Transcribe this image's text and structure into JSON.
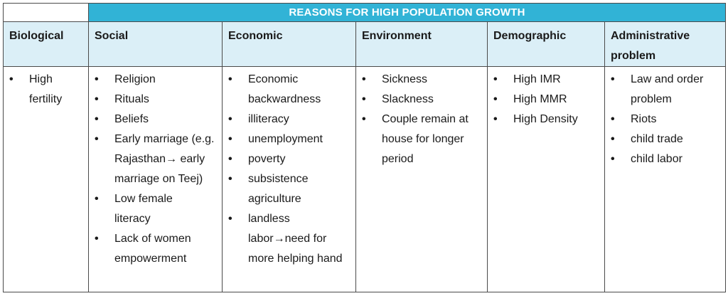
{
  "title": "REASONS FOR HIGH POPULATION GROWTH",
  "columns": [
    {
      "header": "Biological",
      "items": [
        "High fertility"
      ]
    },
    {
      "header": "Social",
      "items": [
        "Religion",
        "Rituals",
        "Beliefs",
        "Early marriage (e.g. Rajasthan→ early marriage on Teej)",
        "Low female literacy",
        "Lack of women empowerment"
      ]
    },
    {
      "header": "Economic",
      "items": [
        "Economic backwardness",
        "illiteracy",
        "unemployment",
        "poverty",
        "subsistence agriculture",
        "landless labor→need for more helping hand"
      ]
    },
    {
      "header": "Environment",
      "items": [
        "Sickness",
        "Slackness",
        "Couple remain at house for longer period"
      ]
    },
    {
      "header": "Demographic",
      "items": [
        "High IMR",
        "High MMR",
        "High Density"
      ]
    },
    {
      "header": "Administrative problem",
      "items": [
        "Law and order problem",
        "Riots",
        "child trade",
        "child labor"
      ]
    }
  ]
}
